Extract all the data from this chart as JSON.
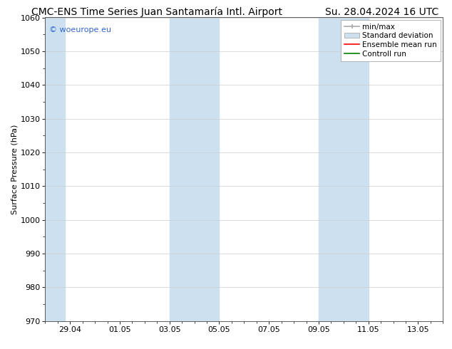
{
  "title_left": "CMC-ENS Time Series Juan Santamaría Intl. Airport",
  "title_right": "Su. 28.04.2024 16 UTC",
  "ylabel": "Surface Pressure (hPa)",
  "ylim": [
    970,
    1060
  ],
  "yticks": [
    970,
    980,
    990,
    1000,
    1010,
    1020,
    1030,
    1040,
    1050,
    1060
  ],
  "xtick_labels": [
    "29.04",
    "01.05",
    "03.05",
    "05.05",
    "07.05",
    "09.05",
    "11.05",
    "13.05"
  ],
  "xmin": 0,
  "xmax": 16,
  "shaded_bands": [
    {
      "x_start": 0.0,
      "x_end": 0.8
    },
    {
      "x_start": 5.0,
      "x_end": 7.0
    },
    {
      "x_start": 11.0,
      "x_end": 13.0
    }
  ],
  "shaded_color": "#cce0f0",
  "bg_color": "#ffffff",
  "watermark_text": "© woeurope.eu",
  "watermark_color": "#3366cc",
  "legend_items": [
    {
      "label": "min/max",
      "color": "#aaaaaa",
      "type": "errorbar"
    },
    {
      "label": "Standard deviation",
      "color": "#ccddee",
      "type": "patch"
    },
    {
      "label": "Ensemble mean run",
      "color": "#ff0000",
      "type": "line"
    },
    {
      "label": "Controll run",
      "color": "#008000",
      "type": "line"
    }
  ],
  "title_fontsize": 10,
  "tick_fontsize": 8,
  "legend_fontsize": 7.5,
  "watermark_fontsize": 8,
  "ylabel_fontsize": 8
}
